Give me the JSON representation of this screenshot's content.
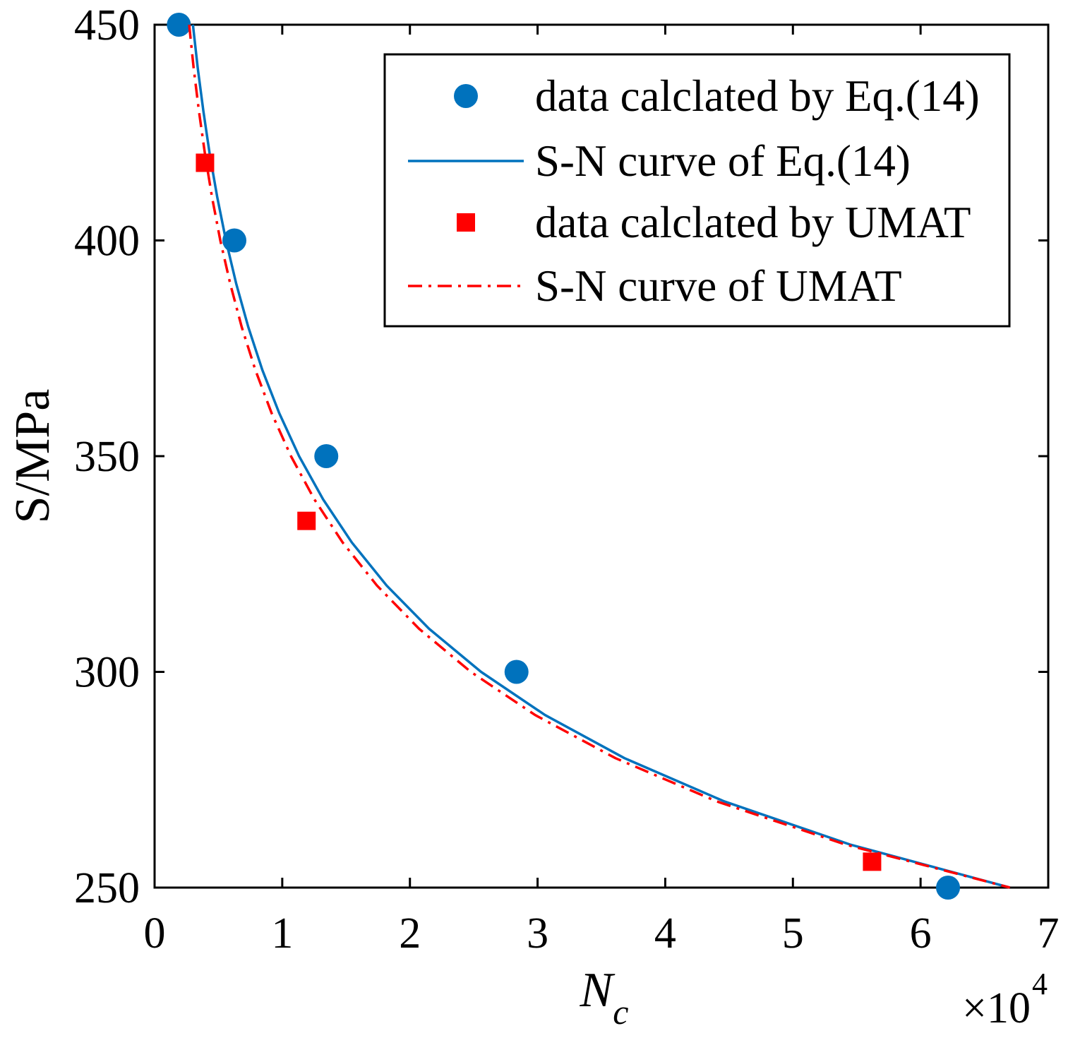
{
  "chart_data": {
    "type": "scatter",
    "xlabel": {
      "main": "N",
      "sub": "c"
    },
    "ylabel": "S/MPa",
    "x_multiplier": {
      "base": "×10",
      "exponent": "4"
    },
    "xlim": [
      0,
      70000
    ],
    "ylim": [
      250,
      450
    ],
    "xticks": [
      0,
      10000,
      20000,
      30000,
      40000,
      50000,
      60000,
      70000
    ],
    "xtick_labels": [
      "0",
      "1",
      "2",
      "3",
      "4",
      "5",
      "6",
      "7"
    ],
    "yticks": [
      250,
      300,
      350,
      400,
      450
    ],
    "ytick_labels": [
      "250",
      "300",
      "350",
      "400",
      "450"
    ],
    "grid": false,
    "legend_position": "top-right",
    "series": [
      {
        "name": "data calclated by Eq.(14)",
        "type": "scatter",
        "color": "#0072BD",
        "x": [
          1900,
          6250,
          13450,
          28350,
          62150
        ],
        "y": [
          450,
          400,
          350,
          300,
          250
        ]
      },
      {
        "name": "S-N curve of Eq.(14)",
        "type": "line",
        "color": "#0072BD",
        "x": [
          3000,
          3380,
          3820,
          4320,
          4910,
          5590,
          6390,
          7330,
          8440,
          9760,
          11320,
          13200,
          15450,
          18180,
          21500,
          25570,
          30580,
          36810,
          44610,
          54460,
          67000
        ],
        "y": [
          450,
          440,
          430,
          420,
          410,
          400,
          390,
          380,
          370,
          360,
          350,
          340,
          330,
          320,
          310,
          300,
          290,
          280,
          270,
          260,
          250
        ]
      },
      {
        "name": "data calclated by UMAT",
        "type": "scatter",
        "color": "#FF0000",
        "x": [
          3950,
          11900,
          56200
        ],
        "y": [
          418,
          335,
          256
        ]
      },
      {
        "name": "S-N curve of UMAT",
        "type": "line",
        "color": "#FF0000",
        "x": [
          2710,
          3060,
          3470,
          3950,
          4500,
          5150,
          5920,
          6820,
          7890,
          9160,
          10680,
          12510,
          14730,
          17420,
          20710,
          24770,
          29810,
          36100,
          44020,
          54090,
          67000
        ],
        "y": [
          450,
          440,
          430,
          420,
          410,
          400,
          390,
          380,
          370,
          360,
          350,
          340,
          330,
          320,
          310,
          300,
          290,
          280,
          270,
          260,
          250
        ]
      }
    ]
  }
}
